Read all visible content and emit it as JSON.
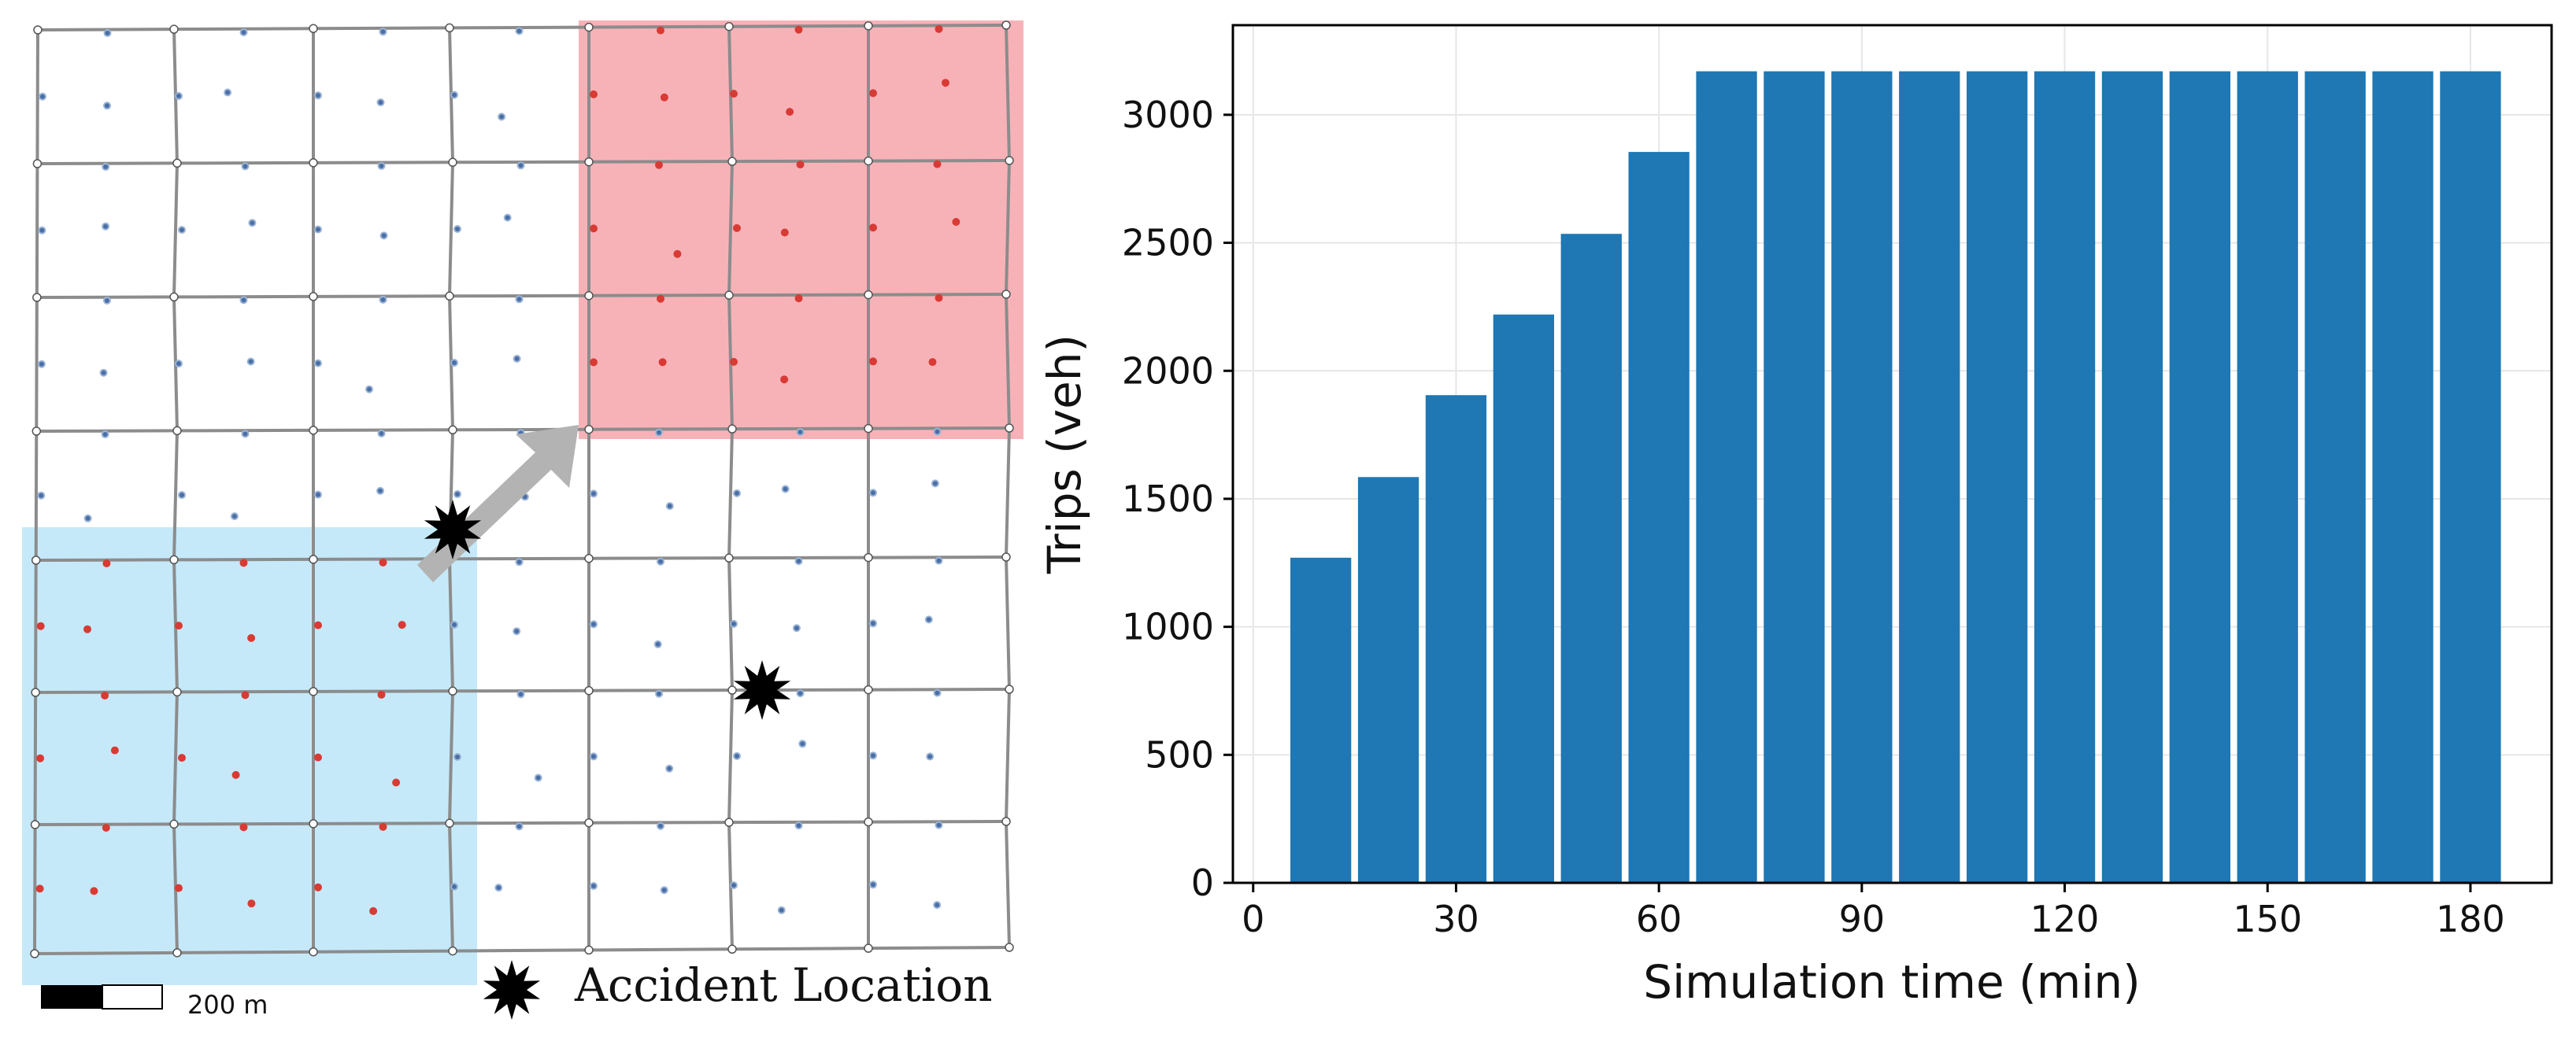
{
  "map": {
    "scale_bar_label": "200 m",
    "legend_label": "Accident Location",
    "colors": {
      "origin_region": "#c5e9f9",
      "destination_region": "#f7b2b8",
      "road": "#8c8c8c",
      "arrow": "#b3b3b3",
      "red_marker": "#d93a34",
      "blue_marker": "#4a6fa5",
      "accident": "#000000"
    }
  },
  "chart_data": {
    "type": "bar",
    "title": "",
    "xlabel": "Simulation time (min)",
    "ylabel": "Trips (veh)",
    "x": [
      10,
      20,
      30,
      40,
      50,
      60,
      70,
      80,
      90,
      100,
      110,
      120,
      130,
      140,
      150,
      160,
      170,
      180
    ],
    "values": [
      1270,
      1585,
      1905,
      2220,
      2535,
      2855,
      3170,
      3170,
      3170,
      3170,
      3170,
      3170,
      3170,
      3170,
      3170,
      3170,
      3170,
      3170
    ],
    "xticks": [
      0,
      30,
      60,
      90,
      120,
      150,
      180
    ],
    "yticks": [
      0,
      500,
      1000,
      1500,
      2000,
      2500,
      3000
    ],
    "xlim": [
      -3,
      192
    ],
    "ylim": [
      0,
      3350
    ],
    "grid": true,
    "bar_color": "#1f77b4"
  }
}
